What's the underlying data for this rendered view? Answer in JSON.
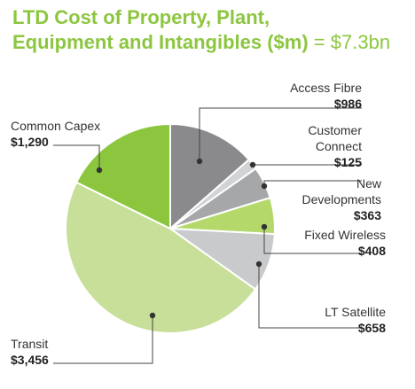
{
  "chart_data": {
    "type": "pie",
    "title_line1": "LTD Cost of Property, Plant,",
    "title_line2": "Equipment and Intangibles ($m)",
    "title_total": " = $7.3bn",
    "colors": {
      "accent": "#8cc63f",
      "access_fibre": "#8a8a8c",
      "customer_connect": "#d2d3d5",
      "new_developments": "#a6a7a9",
      "fixed_wireless": "#b5d86b",
      "lt_satellite": "#c9cacb",
      "transit": "#c7df98",
      "common_capex": "#8cc63f"
    },
    "slices": [
      {
        "key": "access_fibre",
        "label": [
          "Access Fibre"
        ],
        "value_label": "$986",
        "value": 986
      },
      {
        "key": "customer_connect",
        "label": [
          "Customer",
          "Connect"
        ],
        "value_label": "$125",
        "value": 125
      },
      {
        "key": "new_developments",
        "label": [
          "New",
          "Developments"
        ],
        "value_label": "$363",
        "value": 363
      },
      {
        "key": "fixed_wireless",
        "label": [
          "Fixed Wireless"
        ],
        "value_label": "$408",
        "value": 408
      },
      {
        "key": "lt_satellite",
        "label": [
          "LT Satellite"
        ],
        "value_label": "$658",
        "value": 658
      },
      {
        "key": "transit",
        "label": [
          "Transit"
        ],
        "value_label": "$3,456",
        "value": 3456
      },
      {
        "key": "common_capex",
        "label": [
          "Common Capex"
        ],
        "value_label": "$1,290",
        "value": 1290
      }
    ]
  }
}
